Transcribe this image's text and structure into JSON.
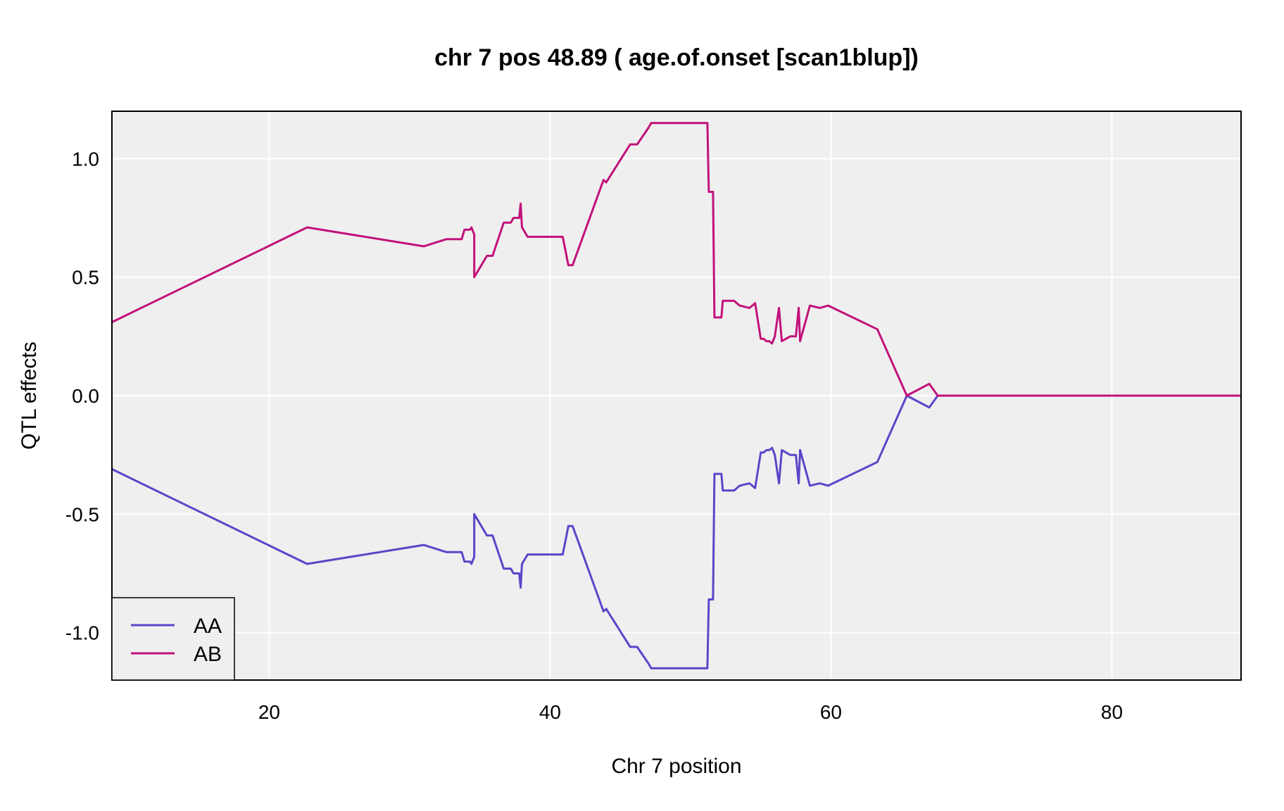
{
  "chart_data": {
    "type": "line",
    "title": "chr 7 pos 48.89 ( age.of.onset  [scan1blup])",
    "xlabel": "Chr 7 position",
    "ylabel": "QTL effects",
    "xlim": [
      8.8,
      89.2
    ],
    "ylim": [
      -1.2,
      1.2
    ],
    "xticks": [
      20,
      40,
      60,
      80
    ],
    "yticks": [
      -1.0,
      -0.5,
      0.0,
      0.5,
      1.0
    ],
    "ytick_labels": [
      "-1.0",
      "-0.5",
      "0.0",
      "0.5",
      "1.0"
    ],
    "grid": true,
    "legend": "bottom-left",
    "series": [
      {
        "name": "AA",
        "color": "#5b45c9",
        "x": [
          8.8,
          22.7,
          31.0,
          32.6,
          32.9,
          33.7,
          33.9,
          34.3,
          34.4,
          34.6,
          34.6,
          35.5,
          35.9,
          36.7,
          37.2,
          37.4,
          37.8,
          37.9,
          38.0,
          38.4,
          39.0,
          40.0,
          40.9,
          41.3,
          41.6,
          43.8,
          44.0,
          45.7,
          46.2,
          47.0,
          47.2,
          51.2,
          51.3,
          51.6,
          51.7,
          52.2,
          52.3,
          53.1,
          53.5,
          54.2,
          54.4,
          54.6,
          55.0,
          55.2,
          55.4,
          55.6,
          55.8,
          56.0,
          56.3,
          56.5,
          57.1,
          57.5,
          57.7,
          57.8,
          58.5,
          59.2,
          59.8,
          63.3,
          65.4,
          67.0,
          67.6,
          89.2
        ],
        "y": [
          -0.31,
          -0.71,
          -0.63,
          -0.66,
          -0.66,
          -0.66,
          -0.7,
          -0.7,
          -0.71,
          -0.68,
          -0.5,
          -0.59,
          -0.59,
          -0.73,
          -0.73,
          -0.75,
          -0.75,
          -0.81,
          -0.71,
          -0.67,
          -0.67,
          -0.67,
          -0.67,
          -0.55,
          -0.55,
          -0.91,
          -0.9,
          -1.06,
          -1.06,
          -1.13,
          -1.15,
          -1.15,
          -0.86,
          -0.86,
          -0.33,
          -0.33,
          -0.4,
          -0.4,
          -0.38,
          -0.37,
          -0.38,
          -0.39,
          -0.24,
          -0.24,
          -0.23,
          -0.23,
          -0.22,
          -0.25,
          -0.37,
          -0.23,
          -0.25,
          -0.25,
          -0.37,
          -0.23,
          -0.38,
          -0.37,
          -0.38,
          -0.28,
          0.0,
          -0.05,
          0.0,
          0.0
        ]
      },
      {
        "name": "AB",
        "color": "#c2117a",
        "x": [
          8.8,
          22.7,
          31.0,
          32.6,
          32.9,
          33.7,
          33.9,
          34.3,
          34.4,
          34.6,
          34.6,
          35.5,
          35.9,
          36.7,
          37.2,
          37.4,
          37.8,
          37.9,
          38.0,
          38.4,
          39.0,
          40.0,
          40.9,
          41.3,
          41.6,
          43.8,
          44.0,
          45.7,
          46.2,
          47.0,
          47.2,
          51.2,
          51.3,
          51.6,
          51.7,
          52.2,
          52.3,
          53.1,
          53.5,
          54.2,
          54.4,
          54.6,
          55.0,
          55.2,
          55.4,
          55.6,
          55.8,
          56.0,
          56.3,
          56.5,
          57.1,
          57.5,
          57.7,
          57.8,
          58.5,
          59.2,
          59.8,
          63.3,
          65.4,
          67.0,
          67.6,
          89.2
        ],
        "y": [
          0.31,
          0.71,
          0.63,
          0.66,
          0.66,
          0.66,
          0.7,
          0.7,
          0.71,
          0.68,
          0.5,
          0.59,
          0.59,
          0.73,
          0.73,
          0.75,
          0.75,
          0.81,
          0.71,
          0.67,
          0.67,
          0.67,
          0.67,
          0.55,
          0.55,
          0.91,
          0.9,
          1.06,
          1.06,
          1.13,
          1.15,
          1.15,
          0.86,
          0.86,
          0.33,
          0.33,
          0.4,
          0.4,
          0.38,
          0.37,
          0.38,
          0.39,
          0.24,
          0.24,
          0.23,
          0.23,
          0.22,
          0.25,
          0.37,
          0.23,
          0.25,
          0.25,
          0.37,
          0.23,
          0.38,
          0.37,
          0.38,
          0.28,
          0.0,
          0.05,
          0.0,
          0.0
        ]
      }
    ]
  }
}
